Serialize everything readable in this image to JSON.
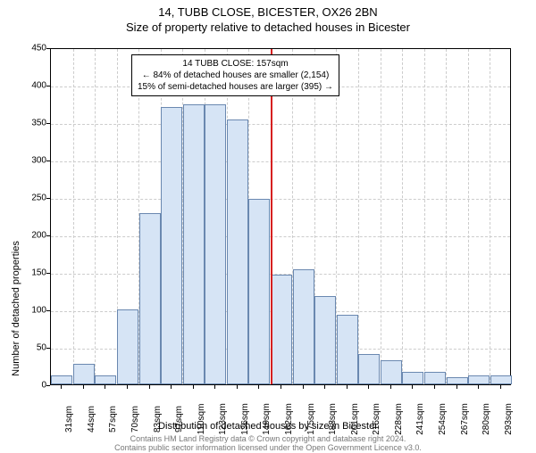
{
  "title_main": "14, TUBB CLOSE, BICESTER, OX26 2BN",
  "title_sub": "Size of property relative to detached houses in Bicester",
  "y_axis_title": "Number of detached properties",
  "x_axis_title": "Distribution of detached houses by size in Bicester",
  "attribution_line1": "Contains HM Land Registry data © Crown copyright and database right 2024.",
  "attribution_line2": "Contains public sector information licensed under the Open Government Licence v3.0.",
  "annotation": {
    "line1": "14 TUBB CLOSE: 157sqm",
    "line2": "← 84% of detached houses are smaller (2,154)",
    "line3": "15% of semi-detached houses are larger (395) →"
  },
  "chart": {
    "type": "histogram",
    "background_color": "#ffffff",
    "grid_color": "#cccccc",
    "bar_fill": "#d6e4f5",
    "bar_border": "#6a88b0",
    "marker_color": "#d62020",
    "marker_x_category_index": 10,
    "ylim": [
      0,
      450
    ],
    "ytick_step": 50,
    "y_ticks": [
      0,
      50,
      100,
      150,
      200,
      250,
      300,
      350,
      400,
      450
    ],
    "x_categories": [
      "31sqm",
      "44sqm",
      "57sqm",
      "70sqm",
      "83sqm",
      "97sqm",
      "110sqm",
      "123sqm",
      "136sqm",
      "149sqm",
      "162sqm",
      "175sqm",
      "188sqm",
      "201sqm",
      "215sqm",
      "228sqm",
      "241sqm",
      "254sqm",
      "267sqm",
      "280sqm",
      "293sqm"
    ],
    "bar_values": [
      12,
      27,
      12,
      100,
      229,
      370,
      374,
      374,
      354,
      248,
      146,
      154,
      118,
      93,
      40,
      32,
      17,
      17,
      10,
      12,
      12
    ],
    "title_fontsize": 13,
    "axis_label_fontsize": 11,
    "tick_fontsize": 10,
    "annotation_fontsize": 10,
    "attribution_fontsize": 9
  }
}
